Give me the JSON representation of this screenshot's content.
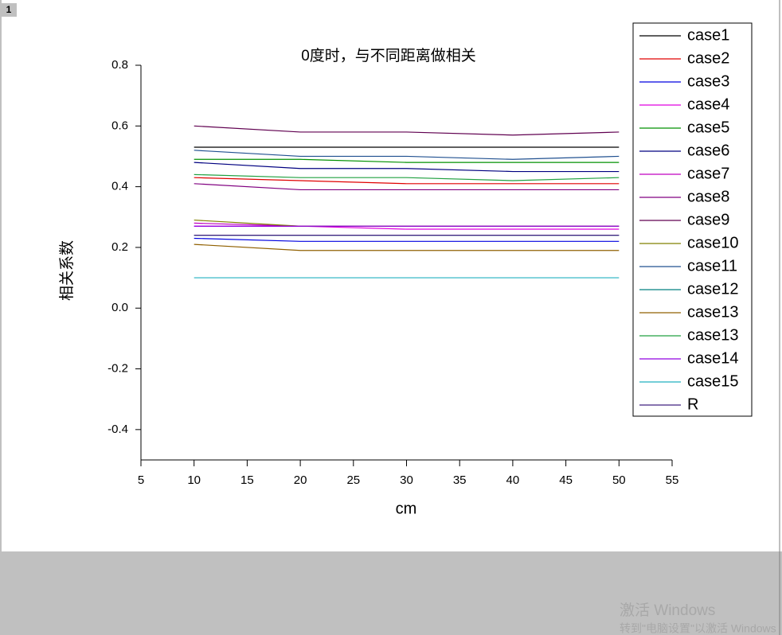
{
  "tab_label": "1",
  "watermark": {
    "line1": "激活 Windows",
    "line2": "转到\"电脑设置\"以激活 Windows"
  },
  "chart_data": {
    "type": "line",
    "title": "0度时，与不同距离做相关",
    "x_label": "cm",
    "y_label": "相关系数",
    "x": [
      10,
      20,
      30,
      40,
      50
    ],
    "xlim": [
      5,
      55
    ],
    "xticks": [
      5,
      10,
      15,
      20,
      25,
      30,
      35,
      40,
      45,
      50,
      55
    ],
    "ylim": [
      -0.5,
      0.8
    ],
    "yticks": [
      -0.4,
      -0.2,
      {
        "value": 0,
        "label": "0.0"
      },
      0.2,
      0.4,
      0.6,
      0.8
    ],
    "legend": "top-right",
    "series": [
      {
        "name": "case1",
        "color": "#000000",
        "values": [
          0.53,
          0.53,
          0.53,
          0.53,
          0.53
        ]
      },
      {
        "name": "case2",
        "color": "#e00000",
        "values": [
          0.43,
          0.42,
          0.41,
          0.41,
          0.41
        ]
      },
      {
        "name": "case3",
        "color": "#0000e0",
        "values": [
          0.23,
          0.22,
          0.22,
          0.22,
          0.22
        ]
      },
      {
        "name": "case4",
        "color": "#e000e0",
        "values": [
          0.27,
          0.27,
          0.26,
          0.26,
          0.26
        ]
      },
      {
        "name": "case5",
        "color": "#009000",
        "values": [
          0.49,
          0.49,
          0.48,
          0.48,
          0.48
        ]
      },
      {
        "name": "case6",
        "color": "#000080",
        "values": [
          0.48,
          0.46,
          0.46,
          0.45,
          0.45
        ]
      },
      {
        "name": "case7",
        "color": "#c000c0",
        "values": [
          0.28,
          0.27,
          0.27,
          0.27,
          0.27
        ]
      },
      {
        "name": "case8",
        "color": "#800080",
        "values": [
          0.41,
          0.39,
          0.39,
          0.39,
          0.39
        ]
      },
      {
        "name": "case9",
        "color": "#600050",
        "values": [
          0.6,
          0.58,
          0.58,
          0.57,
          0.58
        ]
      },
      {
        "name": "case10",
        "color": "#808000",
        "values": [
          0.29,
          0.27,
          0.27,
          0.27,
          0.27
        ]
      },
      {
        "name": "case11",
        "color": "#205090",
        "values": [
          0.52,
          0.5,
          0.5,
          0.49,
          0.5
        ]
      },
      {
        "name": "case12",
        "color": "#008080",
        "values": [
          0.24,
          0.24,
          0.24,
          0.24,
          0.24
        ]
      },
      {
        "name": "case13",
        "color": "#906000",
        "values": [
          0.21,
          0.19,
          0.19,
          0.19,
          0.19
        ]
      },
      {
        "name": "case13",
        "color": "#20a040",
        "values": [
          0.44,
          0.43,
          0.43,
          0.42,
          0.43
        ]
      },
      {
        "name": "case14",
        "color": "#9000e0",
        "values": [
          0.27,
          0.27,
          0.27,
          0.27,
          0.27
        ]
      },
      {
        "name": "case15",
        "color": "#20b0c0",
        "values": [
          0.1,
          0.1,
          0.1,
          0.1,
          0.1
        ]
      },
      {
        "name": "R",
        "color": "#402080",
        "values": [
          0.24,
          0.24,
          0.24,
          0.24,
          0.24
        ]
      }
    ]
  }
}
